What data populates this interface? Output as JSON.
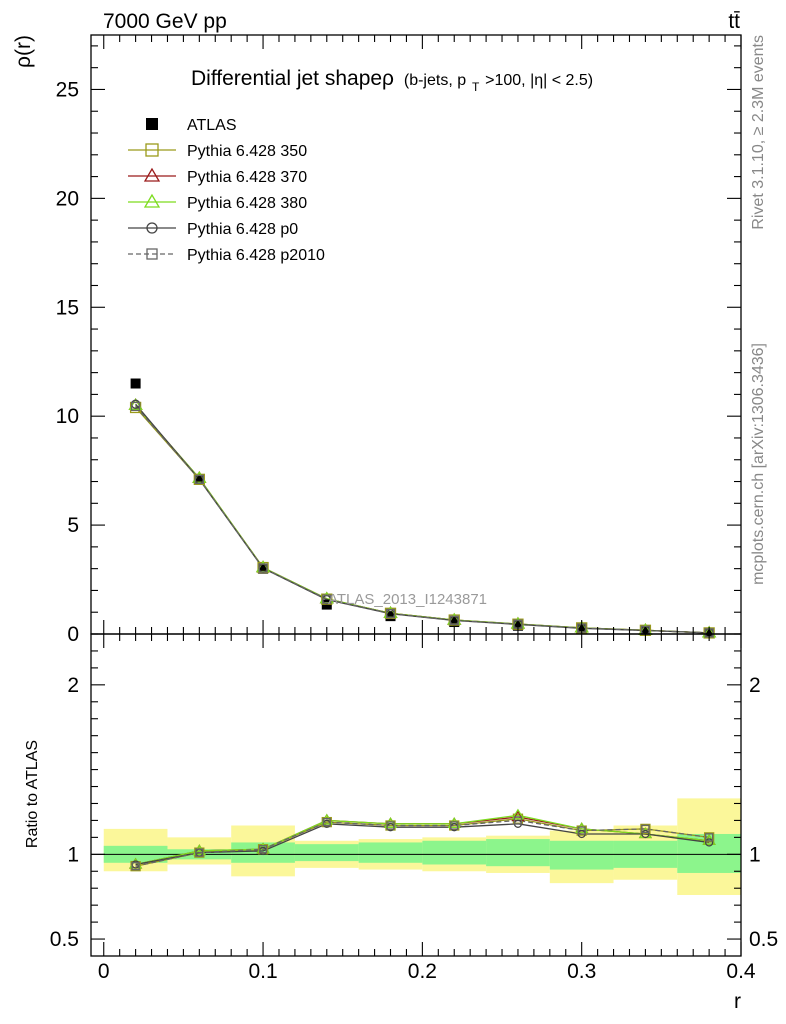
{
  "header": {
    "energy_label": "7000 GeV pp",
    "process_label": "tt̄"
  },
  "side_labels": {
    "rivet": "Rivet 3.1.10, ≥ 2.3M events",
    "mcplots": "mcplots.cern.ch [arXiv:1306.3436]"
  },
  "chart_data": [
    {
      "type": "line",
      "title_main": "Differential jet shapeρ",
      "title_selection": "(b-jets, p",
      "title_sub": "T",
      "title_rest": ">100, |η| < 2.5)",
      "ylabel": "ρ(r)",
      "ylim": [
        0,
        27.5
      ],
      "xlim": [
        -0.008,
        0.4
      ],
      "yticks": [
        0,
        5,
        10,
        15,
        20,
        25
      ],
      "watermark": "ATLAS_2013_I1243871",
      "legend_position": "top-left",
      "x": [
        0.02,
        0.06,
        0.1,
        0.14,
        0.18,
        0.22,
        0.26,
        0.3,
        0.34,
        0.38
      ],
      "series": [
        {
          "name": "ATLAS",
          "marker": "filled-square",
          "color": "#000000",
          "values": [
            11.5,
            7.1,
            3.0,
            1.35,
            0.82,
            0.55,
            0.38,
            0.22,
            0.14,
            0.06
          ]
        },
        {
          "name": "Pythia 6.428 350",
          "marker": "open-square",
          "color": "#9a9a1a",
          "values": [
            10.4,
            7.1,
            3.05,
            1.6,
            0.95,
            0.64,
            0.45,
            0.28,
            0.17,
            0.05
          ]
        },
        {
          "name": "Pythia 6.428 370",
          "marker": "open-triangle",
          "color": "#9b1b1b",
          "values": [
            10.5,
            7.15,
            3.05,
            1.62,
            0.95,
            0.64,
            0.46,
            0.28,
            0.17,
            0.05
          ]
        },
        {
          "name": "Pythia 6.428 380",
          "marker": "open-triangle",
          "color": "#7ddc1f",
          "values": [
            10.5,
            7.15,
            3.05,
            1.62,
            0.95,
            0.64,
            0.46,
            0.28,
            0.17,
            0.05
          ]
        },
        {
          "name": "Pythia 6.428 p0",
          "marker": "open-circle",
          "color": "#444444",
          "values": [
            10.55,
            7.1,
            3.02,
            1.58,
            0.93,
            0.62,
            0.44,
            0.26,
            0.16,
            0.05
          ]
        },
        {
          "name": "Pythia 6.428 p2010",
          "marker": "open-square-dashed",
          "color": "#666666",
          "values": [
            10.45,
            7.1,
            3.03,
            1.6,
            0.94,
            0.63,
            0.45,
            0.27,
            0.17,
            0.05
          ]
        }
      ]
    },
    {
      "type": "line",
      "ylabel": "Ratio to ATLAS",
      "xlabel": "r",
      "ylim": [
        0.4,
        2.3
      ],
      "xlim": [
        -0.008,
        0.4
      ],
      "yticks": [
        0.5,
        1,
        2
      ],
      "ytick_labels": [
        "0.5",
        "1",
        "2"
      ],
      "xticks": [
        0,
        0.1,
        0.2,
        0.3,
        0.4
      ],
      "xtick_labels": [
        "0",
        "0.1",
        "0.2",
        "0.3",
        "0.4"
      ],
      "bins": [
        [
          0.0,
          0.04
        ],
        [
          0.04,
          0.08
        ],
        [
          0.08,
          0.12
        ],
        [
          0.12,
          0.16
        ],
        [
          0.16,
          0.2
        ],
        [
          0.2,
          0.24
        ],
        [
          0.24,
          0.28
        ],
        [
          0.28,
          0.32
        ],
        [
          0.32,
          0.36
        ],
        [
          0.36,
          0.4
        ]
      ],
      "band_stat": [
        [
          0.95,
          1.05
        ],
        [
          0.97,
          1.03
        ],
        [
          0.95,
          1.07
        ],
        [
          0.96,
          1.06
        ],
        [
          0.95,
          1.07
        ],
        [
          0.94,
          1.08
        ],
        [
          0.93,
          1.09
        ],
        [
          0.91,
          1.08
        ],
        [
          0.92,
          1.08
        ],
        [
          0.89,
          1.12
        ]
      ],
      "band_total": [
        [
          0.9,
          1.15
        ],
        [
          0.94,
          1.1
        ],
        [
          0.87,
          1.17
        ],
        [
          0.92,
          1.08
        ],
        [
          0.91,
          1.09
        ],
        [
          0.9,
          1.1
        ],
        [
          0.89,
          1.11
        ],
        [
          0.83,
          1.14
        ],
        [
          0.85,
          1.17
        ],
        [
          0.76,
          1.33
        ]
      ],
      "band_colors": {
        "stat": "#8cf58c",
        "total": "#fbf79a"
      },
      "x": [
        0.02,
        0.06,
        0.1,
        0.14,
        0.18,
        0.22,
        0.26,
        0.3,
        0.34,
        0.38
      ],
      "series": [
        {
          "name": "Pythia 6.428 350",
          "color": "#9a9a1a",
          "marker": "open-square",
          "values": [
            0.93,
            1.01,
            1.03,
            1.19,
            1.17,
            1.17,
            1.21,
            1.14,
            1.15,
            1.1
          ]
        },
        {
          "name": "Pythia 6.428 370",
          "color": "#9b1b1b",
          "marker": "open-triangle",
          "values": [
            0.94,
            1.02,
            1.03,
            1.2,
            1.18,
            1.18,
            1.22,
            1.15,
            1.12,
            1.08
          ]
        },
        {
          "name": "Pythia 6.428 380",
          "color": "#7ddc1f",
          "marker": "open-triangle",
          "values": [
            0.94,
            1.02,
            1.03,
            1.2,
            1.18,
            1.18,
            1.23,
            1.15,
            1.12,
            1.08
          ]
        },
        {
          "name": "Pythia 6.428 p0",
          "color": "#444444",
          "marker": "open-circle",
          "values": [
            0.94,
            1.01,
            1.02,
            1.18,
            1.16,
            1.16,
            1.18,
            1.12,
            1.12,
            1.07
          ]
        },
        {
          "name": "Pythia 6.428 p2010",
          "color": "#666666",
          "marker": "open-square-dashed",
          "values": [
            0.93,
            1.01,
            1.03,
            1.19,
            1.17,
            1.17,
            1.2,
            1.14,
            1.15,
            1.1
          ]
        }
      ]
    }
  ]
}
